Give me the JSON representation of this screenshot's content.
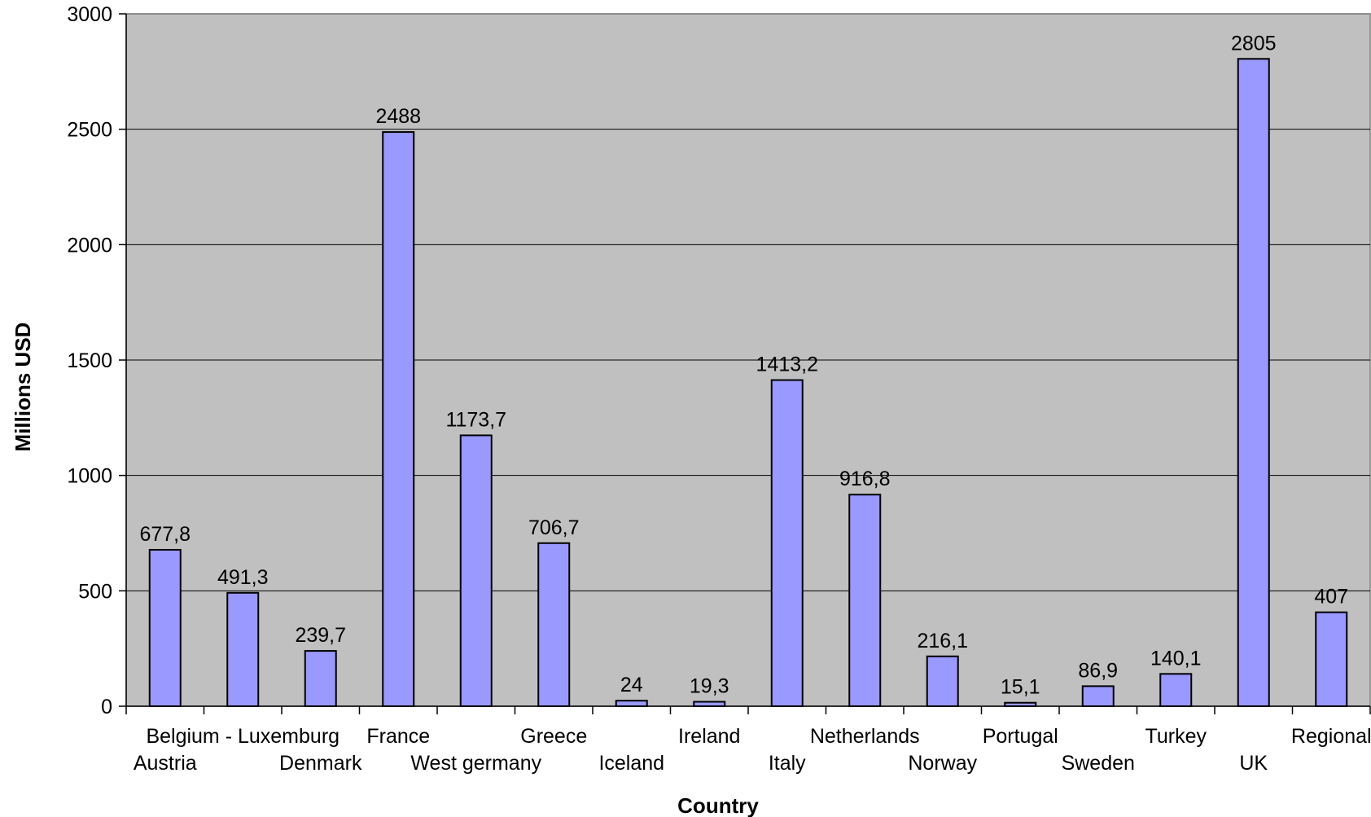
{
  "chart_data": {
    "type": "bar",
    "title": "",
    "xlabel": "Country",
    "ylabel": "Millions USD",
    "categories": [
      "Austria",
      "Belgium - Luxemburg",
      "Denmark",
      "France",
      "West germany",
      "Greece",
      "Iceland",
      "Ireland",
      "Italy",
      "Netherlands",
      "Norway",
      "Portugal",
      "Sweden",
      "Turkey",
      "UK",
      "Regional"
    ],
    "values": [
      677.8,
      491.3,
      239.7,
      2488,
      1173.7,
      706.7,
      24,
      19.3,
      1413.2,
      916.8,
      216.1,
      15.1,
      86.9,
      140.1,
      2805,
      407
    ],
    "data_labels": [
      "677,8",
      "491,3",
      "239,7",
      "2488",
      "1173,7",
      "706,7",
      "24",
      "19,3",
      "1413,2",
      "916,8",
      "216,1",
      "15,1",
      "86,9",
      "140,1",
      "2805",
      "407"
    ],
    "ylim": [
      0,
      3000
    ],
    "yticks": [
      0,
      500,
      1000,
      1500,
      2000,
      2500,
      3000
    ],
    "grid": true,
    "legend": "none",
    "colors": {
      "bar_fill": "#9999ff",
      "bar_stroke": "#000000",
      "plot_background": "#c0c0c0",
      "gridline": "#000000"
    }
  }
}
